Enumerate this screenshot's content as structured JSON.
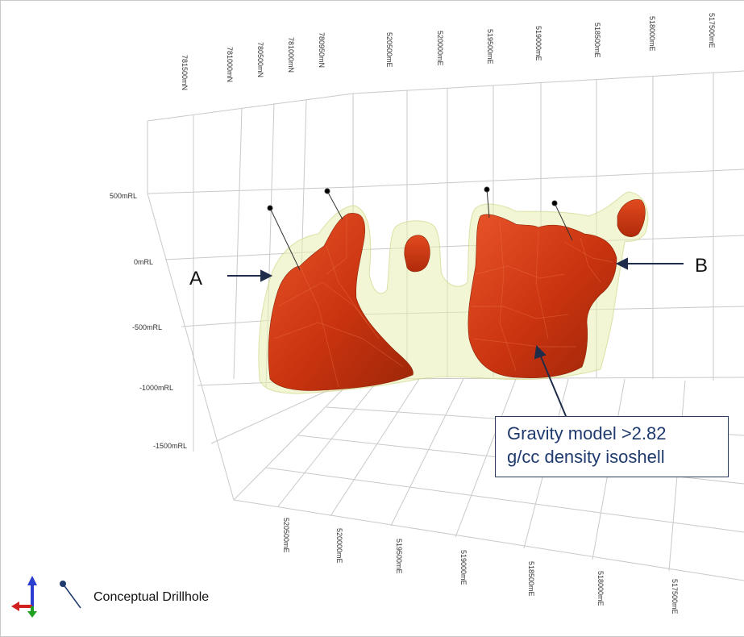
{
  "axis_labels": {
    "northing": [
      "781500mN",
      "781000mN",
      "780500mN",
      "781000mN",
      "780950mN"
    ],
    "easting_top": [
      "520500mE",
      "520000mE",
      "519500mE",
      "519000mE",
      "518500mE",
      "518000mE",
      "517500mE"
    ],
    "elevation": [
      "500mRL",
      "0mRL",
      "-500mRL",
      "-1000mRL",
      "-1500mRL"
    ],
    "easting_bottom": [
      "520500mE",
      "520000mE",
      "519500mE",
      "519000mE",
      "518500mE",
      "518000mE",
      "517500mE"
    ]
  },
  "markers": {
    "a": "A",
    "b": "B"
  },
  "callout": {
    "line1": "Gravity model >2.82",
    "line2": "g/cc density isoshell"
  },
  "legend": {
    "label": "Conceptual Drillhole",
    "icon": "drillhole-icon"
  },
  "colors": {
    "body": "#d03a14",
    "shell": "#e8efb0",
    "grid": "#c9c9c9",
    "callout_text": "#1f3a6e"
  }
}
